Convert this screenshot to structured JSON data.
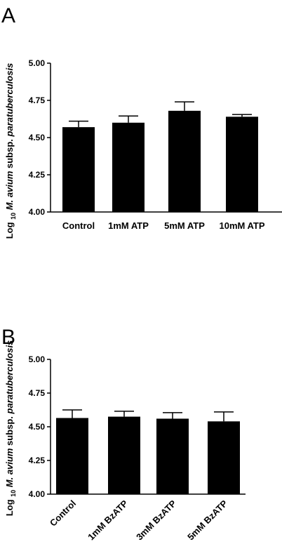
{
  "chart_data": [
    {
      "panel": "A",
      "type": "bar",
      "ylabel_prefix": "Log",
      "ylabel_sub": "10",
      "ylabel_italic": "M. avium",
      "ylabel_mid": "subsp.",
      "ylabel_italic2": "paratuberculosis",
      "categories": [
        "Control",
        "1mM ATP",
        "5mM ATP",
        "10mM ATP"
      ],
      "values": [
        4.57,
        4.6,
        4.68,
        4.64
      ],
      "errors": [
        0.04,
        0.045,
        0.06,
        0.015
      ],
      "ylim": [
        4.0,
        5.0
      ],
      "yticks": [
        "4.00",
        "4.25",
        "4.50",
        "4.75",
        "5.00"
      ],
      "bar_color": "#000000",
      "xtick_rotation": 0
    },
    {
      "panel": "B",
      "type": "bar",
      "ylabel_prefix": "Log",
      "ylabel_sub": "10",
      "ylabel_italic": "M. avium",
      "ylabel_mid": "subsp.",
      "ylabel_italic2": "paratuberculosis",
      "categories": [
        "Control",
        "1mM BzATP",
        "3mM BzATP",
        "5mM BzATP"
      ],
      "values": [
        4.565,
        4.575,
        4.56,
        4.54
      ],
      "errors": [
        0.06,
        0.04,
        0.045,
        0.07
      ],
      "ylim": [
        4.0,
        5.0
      ],
      "yticks": [
        "4.00",
        "4.25",
        "4.50",
        "4.75",
        "5.00"
      ],
      "bar_color": "#000000",
      "xtick_rotation": -45
    }
  ]
}
